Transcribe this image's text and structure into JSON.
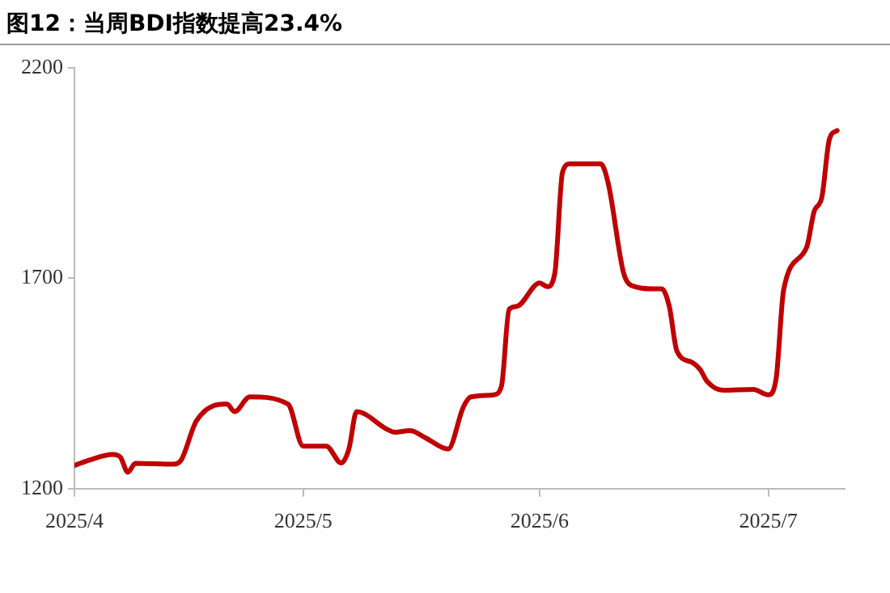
{
  "chart_data": {
    "type": "line",
    "title": "图12：当周BDI指数提高23.4%",
    "x": [
      "2025-04-01",
      "2025-04-03",
      "2025-04-06",
      "2025-04-07",
      "2025-04-08",
      "2025-04-09",
      "2025-04-14",
      "2025-04-15",
      "2025-04-17",
      "2025-04-21",
      "2025-04-22",
      "2025-04-24",
      "2025-04-29",
      "2025-05-01",
      "2025-05-04",
      "2025-05-06",
      "2025-05-07",
      "2025-05-08",
      "2025-05-12",
      "2025-05-13",
      "2025-05-15",
      "2025-05-17",
      "2025-05-20",
      "2025-05-22",
      "2025-05-23",
      "2025-05-26",
      "2025-05-27",
      "2025-05-28",
      "2025-05-29",
      "2025-06-01",
      "2025-06-02",
      "2025-06-03",
      "2025-06-04",
      "2025-06-05",
      "2025-06-09",
      "2025-06-10",
      "2025-06-12",
      "2025-06-13",
      "2025-06-16",
      "2025-06-17",
      "2025-06-18",
      "2025-06-19",
      "2025-06-21",
      "2025-06-22",
      "2025-06-23",
      "2025-06-25",
      "2025-06-29",
      "2025-07-01",
      "2025-07-02",
      "2025-07-03",
      "2025-07-06",
      "2025-07-07",
      "2025-07-08",
      "2025-07-09",
      "2025-07-10"
    ],
    "series": [
      {
        "color": "#c00000",
        "values": [
          1255,
          1268,
          1281,
          1275,
          1239,
          1260,
          1258,
          1268,
          1361,
          1401,
          1383,
          1418,
          1401,
          1301,
          1301,
          1261,
          1295,
          1383,
          1341,
          1334,
          1338,
          1321,
          1294,
          1394,
          1418,
          1423,
          1444,
          1626,
          1633,
          1689,
          1680,
          1713,
          1952,
          1972,
          1972,
          1925,
          1713,
          1683,
          1675,
          1675,
          1633,
          1527,
          1500,
          1484,
          1454,
          1434,
          1436,
          1423,
          1460,
          1673,
          1773,
          1859,
          1892,
          2031,
          2051
        ]
      }
    ],
    "xlim": [
      "2025-04-01",
      "2025-07-11"
    ],
    "xticks": [
      {
        "value": "2025-04-01",
        "label": "2025/4"
      },
      {
        "value": "2025-05-01",
        "label": "2025/5"
      },
      {
        "value": "2025-06-01",
        "label": "2025/6"
      },
      {
        "value": "2025-07-01",
        "label": "2025/7"
      }
    ],
    "ylim": [
      1200,
      2200
    ],
    "yticks": [
      1200,
      1700,
      2200
    ],
    "grid": false,
    "legend": false,
    "marker": "none",
    "line_style": "solid"
  }
}
